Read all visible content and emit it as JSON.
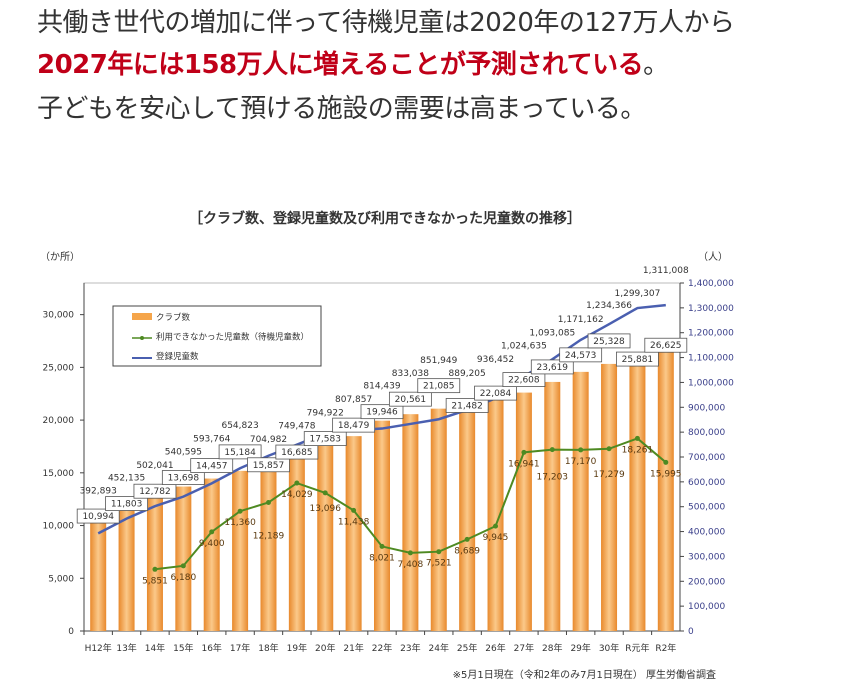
{
  "article": {
    "line1": "共働き世代の増加に伴って待機児童は2020年の127万人から",
    "line2_emphasis": "2027年には158万人に増えることが予測されている",
    "line2_tail": "。",
    "line3": "子どもを安心して預ける施設の需要は高まっている。"
  },
  "colors": {
    "emphasis": "#c00018",
    "bar": "#f5a54a",
    "waiting": "#4e8a22",
    "registered": "#4a5fb0"
  },
  "chart_data": {
    "type": "bar+line",
    "title": "［クラブ数、登録児童数及び利用できなかった児童数の推移］",
    "ylabel_left": "（か所）",
    "ylabel_right": "（人）",
    "footnote": "※5月1日現在（令和2年のみ7月1日現在） 厚生労働省調査",
    "categories": [
      "H12年",
      "13年",
      "14年",
      "15年",
      "16年",
      "17年",
      "18年",
      "19年",
      "20年",
      "21年",
      "22年",
      "23年",
      "24年",
      "25年",
      "26年",
      "27年",
      "28年",
      "29年",
      "30年",
      "R元年",
      "R2年"
    ],
    "left_ticks": [
      "0",
      "5,000",
      "10,000",
      "15,000",
      "20,000",
      "25,000",
      "30,000"
    ],
    "left_ylim": [
      0,
      33000
    ],
    "right_ticks": [
      "0",
      "100,000",
      "200,000",
      "300,000",
      "400,000",
      "500,000",
      "600,000",
      "700,000",
      "800,000",
      "900,000",
      "1,000,000",
      "1,100,000",
      "1,200,000",
      "1,300,000",
      "1,400,000"
    ],
    "right_ylim": [
      0,
      1400000
    ],
    "legend": [
      "クラブ数",
      "利用できなかった児童数（待機児童数）",
      "登録児童数"
    ],
    "legend_position": "top-left",
    "series": [
      {
        "name": "クラブ数",
        "type": "bar",
        "axis": "left",
        "values": [
          10994,
          11803,
          12782,
          13698,
          14457,
          15184,
          15857,
          16685,
          17583,
          18479,
          19946,
          20561,
          21085,
          21482,
          22084,
          22608,
          23619,
          24573,
          25328,
          25881,
          26625
        ],
        "labels": [
          "10,994",
          "11,803",
          "12,782",
          "13,698",
          "14,457",
          "15,184",
          "15,857",
          "16,685",
          "17,583",
          "18,479",
          "19,946",
          "20,561",
          "21,085",
          "21,482",
          "22,084",
          "22,608",
          "23,619",
          "24,573",
          "25,328",
          "25,881",
          "26,625"
        ]
      },
      {
        "name": "利用できなかった児童数（待機児童数）",
        "type": "line",
        "axis": "left",
        "values": [
          null,
          null,
          5851,
          6180,
          9400,
          11360,
          12189,
          14029,
          13096,
          11438,
          8021,
          7408,
          7521,
          8689,
          9945,
          16941,
          17203,
          17170,
          17279,
          18261,
          15995
        ],
        "labels": [
          null,
          null,
          "5,851",
          "6,180",
          "9,400",
          "11,360",
          "12,189",
          "14,029",
          "13,096",
          "11,438",
          "8,021",
          "7,408",
          "7,521",
          "8,689",
          "9,945",
          "16,941",
          "17,203",
          "17,170",
          "17,279",
          "18,261",
          "15,995"
        ]
      },
      {
        "name": "登録児童数",
        "type": "line",
        "axis": "right",
        "values": [
          392893,
          452135,
          502041,
          540595,
          593764,
          654823,
          704982,
          749478,
          794922,
          807857,
          814439,
          833038,
          851949,
          889205,
          936452,
          1024635,
          1093085,
          1171162,
          1234366,
          1299307,
          1311008
        ],
        "labels": [
          "392,893",
          "452,135",
          "502,041",
          "540,595",
          "593,764",
          "654,823",
          "704,982",
          "749,478",
          "794,922",
          "807,857",
          "814,439",
          "833,038",
          "851,949",
          "889,205",
          "936,452",
          "1,024,635",
          "1,093,085",
          "1,171,162",
          "1,234,366",
          "1,299,307",
          "1,311,008"
        ]
      }
    ]
  }
}
